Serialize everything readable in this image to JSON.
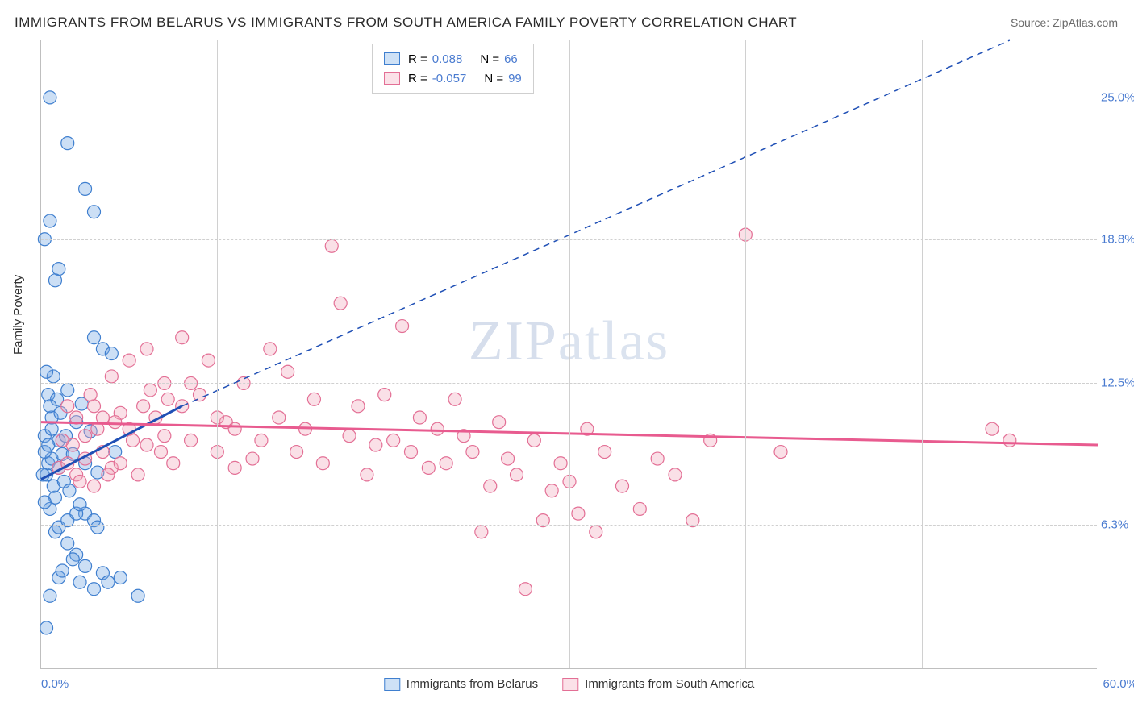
{
  "chart": {
    "type": "scatter",
    "title": "IMMIGRANTS FROM BELARUS VS IMMIGRANTS FROM SOUTH AMERICA FAMILY POVERTY CORRELATION CHART",
    "source": "Source: ZipAtlas.com",
    "ylabel": "Family Poverty",
    "watermark": "ZIPatlas",
    "background_color": "#ffffff",
    "grid_color": "#d0d0d0",
    "axis_color": "#bfbfbf",
    "tick_label_color": "#4a7bd0",
    "xlim": [
      0,
      60
    ],
    "ylim": [
      0,
      27.5
    ],
    "xticks": [
      0,
      60
    ],
    "xtick_labels": [
      "0.0%",
      "60.0%"
    ],
    "xgrid_positions": [
      10,
      20,
      30,
      40,
      50
    ],
    "yticks": [
      6.3,
      12.5,
      18.8,
      25.0
    ],
    "ytick_labels": [
      "6.3%",
      "12.5%",
      "18.8%",
      "25.0%"
    ],
    "marker_radius": 8,
    "marker_fill_opacity": 0.35,
    "marker_stroke_width": 1.2,
    "series": [
      {
        "name": "Immigrants from Belarus",
        "color": "#6ca4e3",
        "stroke": "#3f7fcf",
        "trend_color": "#1f4fb5",
        "r_value": "0.088",
        "n_value": "66",
        "trend": {
          "x1": 0,
          "y1": 8.3,
          "x2": 8,
          "y2": 11.5,
          "dash_x2": 55,
          "dash_y2": 27.5
        },
        "points": [
          [
            0.3,
            8.5
          ],
          [
            0.4,
            9.0
          ],
          [
            0.6,
            9.2
          ],
          [
            0.8,
            7.5
          ],
          [
            0.5,
            7.0
          ],
          [
            1.0,
            8.8
          ],
          [
            1.2,
            9.4
          ],
          [
            0.2,
            10.2
          ],
          [
            0.6,
            11.0
          ],
          [
            0.4,
            12.0
          ],
          [
            0.7,
            12.8
          ],
          [
            0.3,
            13.0
          ],
          [
            1.5,
            12.2
          ],
          [
            2.0,
            10.8
          ],
          [
            2.3,
            11.6
          ],
          [
            1.0,
            10.0
          ],
          [
            0.2,
            18.8
          ],
          [
            0.5,
            19.6
          ],
          [
            1.8,
            9.4
          ],
          [
            2.5,
            9.0
          ],
          [
            2.8,
            10.4
          ],
          [
            3.2,
            8.6
          ],
          [
            0.1,
            8.5
          ],
          [
            0.2,
            9.5
          ],
          [
            0.5,
            25.0
          ],
          [
            1.5,
            23.0
          ],
          [
            2.5,
            21.0
          ],
          [
            3.0,
            20.0
          ],
          [
            1.0,
            17.5
          ],
          [
            0.8,
            17.0
          ],
          [
            3.0,
            14.5
          ],
          [
            3.5,
            14.0
          ],
          [
            4.0,
            13.8
          ],
          [
            4.2,
            9.5
          ],
          [
            2.5,
            6.8
          ],
          [
            3.0,
            6.5
          ],
          [
            3.2,
            6.2
          ],
          [
            1.5,
            5.5
          ],
          [
            2.0,
            5.0
          ],
          [
            2.5,
            4.5
          ],
          [
            3.5,
            4.2
          ],
          [
            1.0,
            4.0
          ],
          [
            1.2,
            4.3
          ],
          [
            1.8,
            4.8
          ],
          [
            2.2,
            3.8
          ],
          [
            3.0,
            3.5
          ],
          [
            3.8,
            3.8
          ],
          [
            0.5,
            3.2
          ],
          [
            4.5,
            4.0
          ],
          [
            5.5,
            3.2
          ],
          [
            0.3,
            1.8
          ],
          [
            0.8,
            6.0
          ],
          [
            1.0,
            6.2
          ],
          [
            1.5,
            6.5
          ],
          [
            2.0,
            6.8
          ],
          [
            2.2,
            7.2
          ],
          [
            0.6,
            10.5
          ],
          [
            1.1,
            11.2
          ],
          [
            1.4,
            10.2
          ],
          [
            0.9,
            11.8
          ],
          [
            0.4,
            9.8
          ],
          [
            0.7,
            8.0
          ],
          [
            1.3,
            8.2
          ],
          [
            1.6,
            7.8
          ],
          [
            0.2,
            7.3
          ],
          [
            0.5,
            11.5
          ]
        ]
      },
      {
        "name": "Immigrants from South America",
        "color": "#f2a6bb",
        "stroke": "#e36f95",
        "trend_color": "#e85b8f",
        "r_value": "-0.057",
        "n_value": "99",
        "trend": {
          "x1": 0,
          "y1": 10.8,
          "x2": 60,
          "y2": 9.8
        },
        "points": [
          [
            1.0,
            8.8
          ],
          [
            1.5,
            9.0
          ],
          [
            2.0,
            8.5
          ],
          [
            2.5,
            9.2
          ],
          [
            3.0,
            8.0
          ],
          [
            3.5,
            9.5
          ],
          [
            4.0,
            8.8
          ],
          [
            4.5,
            9.0
          ],
          [
            5.0,
            10.5
          ],
          [
            5.5,
            8.5
          ],
          [
            6.0,
            9.8
          ],
          [
            6.5,
            11.0
          ],
          [
            7.0,
            10.2
          ],
          [
            7.5,
            9.0
          ],
          [
            8.0,
            11.5
          ],
          [
            8.5,
            10.0
          ],
          [
            9.0,
            12.0
          ],
          [
            9.5,
            13.5
          ],
          [
            10.0,
            9.5
          ],
          [
            10.5,
            10.8
          ],
          [
            11.0,
            8.8
          ],
          [
            11.5,
            12.5
          ],
          [
            12.0,
            9.2
          ],
          [
            12.5,
            10.0
          ],
          [
            13.0,
            14.0
          ],
          [
            13.5,
            11.0
          ],
          [
            14.0,
            13.0
          ],
          [
            14.5,
            9.5
          ],
          [
            15.0,
            10.5
          ],
          [
            15.5,
            11.8
          ],
          [
            16.0,
            9.0
          ],
          [
            16.5,
            18.5
          ],
          [
            17.0,
            16.0
          ],
          [
            17.5,
            10.2
          ],
          [
            18.0,
            11.5
          ],
          [
            18.5,
            8.5
          ],
          [
            19.0,
            9.8
          ],
          [
            19.5,
            12.0
          ],
          [
            20.0,
            10.0
          ],
          [
            20.5,
            15.0
          ],
          [
            21.0,
            9.5
          ],
          [
            21.5,
            11.0
          ],
          [
            22.0,
            8.8
          ],
          [
            22.5,
            10.5
          ],
          [
            23.0,
            9.0
          ],
          [
            23.5,
            11.8
          ],
          [
            24.0,
            10.2
          ],
          [
            24.5,
            9.5
          ],
          [
            25.0,
            6.0
          ],
          [
            25.5,
            8.0
          ],
          [
            26.0,
            10.8
          ],
          [
            26.5,
            9.2
          ],
          [
            27.0,
            8.5
          ],
          [
            27.5,
            3.5
          ],
          [
            28.0,
            10.0
          ],
          [
            28.5,
            6.5
          ],
          [
            29.0,
            7.8
          ],
          [
            29.5,
            9.0
          ],
          [
            30.0,
            8.2
          ],
          [
            30.5,
            6.8
          ],
          [
            31.0,
            10.5
          ],
          [
            31.5,
            6.0
          ],
          [
            32.0,
            9.5
          ],
          [
            33.0,
            8.0
          ],
          [
            34.0,
            7.0
          ],
          [
            35.0,
            9.2
          ],
          [
            36.0,
            8.5
          ],
          [
            37.0,
            6.5
          ],
          [
            38.0,
            10.0
          ],
          [
            40.0,
            19.0
          ],
          [
            42.0,
            9.5
          ],
          [
            54.0,
            10.5
          ],
          [
            55.0,
            10.0
          ],
          [
            3.0,
            11.5
          ],
          [
            4.0,
            12.8
          ],
          [
            5.0,
            13.5
          ],
          [
            6.0,
            14.0
          ],
          [
            7.0,
            12.5
          ],
          [
            8.0,
            14.5
          ],
          [
            2.0,
            11.0
          ],
          [
            2.5,
            10.2
          ],
          [
            1.8,
            9.8
          ],
          [
            3.2,
            10.5
          ],
          [
            4.5,
            11.2
          ],
          [
            5.2,
            10.0
          ],
          [
            6.8,
            9.5
          ],
          [
            2.2,
            8.2
          ],
          [
            3.8,
            8.5
          ],
          [
            1.2,
            10.0
          ],
          [
            1.5,
            11.5
          ],
          [
            2.8,
            12.0
          ],
          [
            3.5,
            11.0
          ],
          [
            4.2,
            10.8
          ],
          [
            5.8,
            11.5
          ],
          [
            6.2,
            12.2
          ],
          [
            7.2,
            11.8
          ],
          [
            8.5,
            12.5
          ],
          [
            10.0,
            11.0
          ],
          [
            11.0,
            10.5
          ]
        ]
      }
    ]
  }
}
